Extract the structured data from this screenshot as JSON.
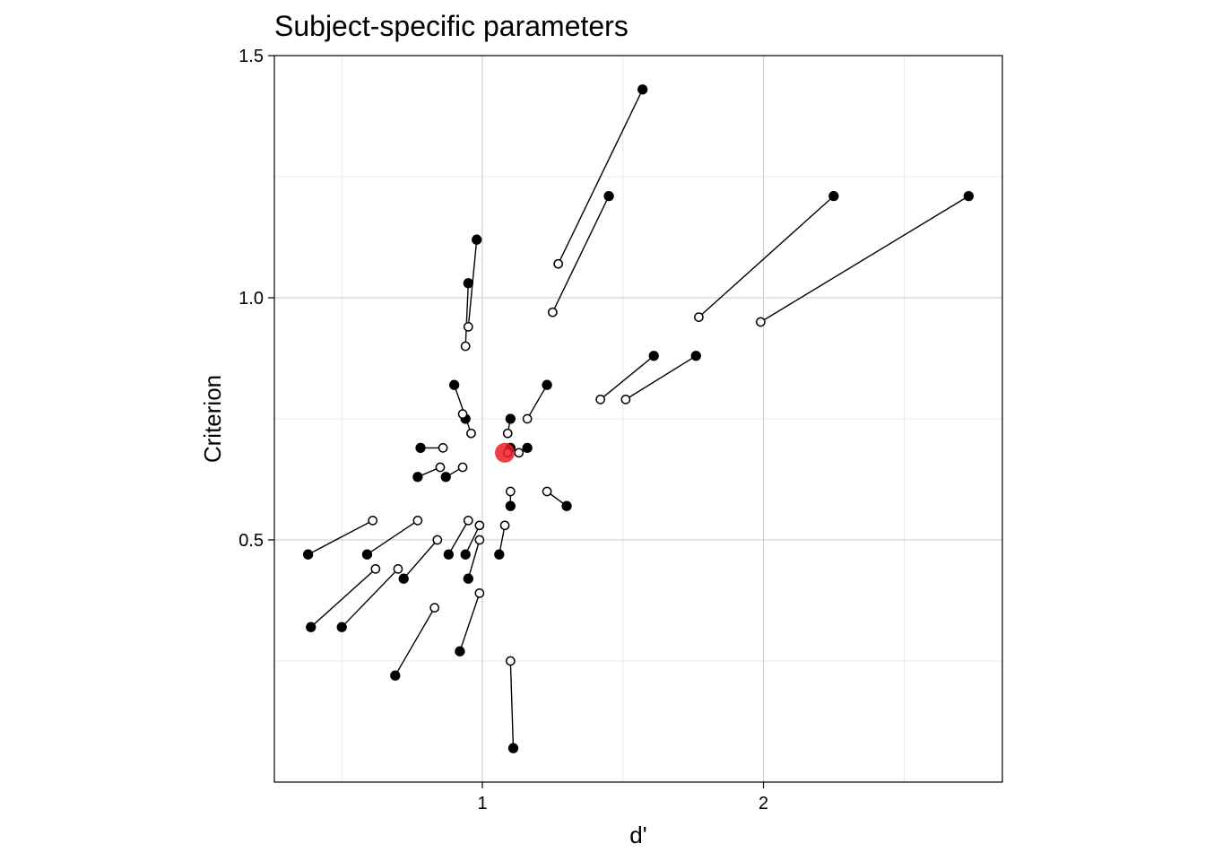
{
  "chart_data": {
    "type": "scatter",
    "title": "Subject-specific parameters",
    "xlabel": "d'",
    "ylabel": "Criterion",
    "xlim": [
      0.26,
      2.85
    ],
    "ylim": [
      0.0,
      1.5
    ],
    "xticks": [
      1,
      2
    ],
    "xtick_labels": [
      "1",
      "2"
    ],
    "yticks": [
      0.5,
      1.0,
      1.5
    ],
    "ytick_labels": [
      "0.5",
      "1.0",
      "1.5"
    ],
    "grid": true,
    "legend": "none",
    "colors": {
      "filled": "#000000",
      "open": "#ffffff",
      "average": "#ee1c25"
    },
    "pairs": [
      {
        "filled": [
          1.57,
          1.43
        ],
        "open": [
          1.27,
          1.07
        ]
      },
      {
        "filled": [
          1.45,
          1.21
        ],
        "open": [
          1.25,
          0.97
        ]
      },
      {
        "filled": [
          2.25,
          1.21
        ],
        "open": [
          1.77,
          0.96
        ]
      },
      {
        "filled": [
          2.73,
          1.21
        ],
        "open": [
          1.99,
          0.95
        ]
      },
      {
        "filled": [
          0.98,
          1.12
        ],
        "open": [
          0.95,
          0.94
        ]
      },
      {
        "filled": [
          0.95,
          1.03
        ],
        "open": [
          0.94,
          0.9
        ]
      },
      {
        "filled": [
          1.61,
          0.88
        ],
        "open": [
          1.42,
          0.79
        ]
      },
      {
        "filled": [
          1.76,
          0.88
        ],
        "open": [
          1.51,
          0.79
        ]
      },
      {
        "filled": [
          0.9,
          0.82
        ],
        "open": [
          0.96,
          0.72
        ]
      },
      {
        "filled": [
          0.94,
          0.75
        ],
        "open": [
          0.93,
          0.76
        ]
      },
      {
        "filled": [
          1.23,
          0.82
        ],
        "open": [
          1.16,
          0.75
        ]
      },
      {
        "filled": [
          1.1,
          0.75
        ],
        "open": [
          1.09,
          0.72
        ]
      },
      {
        "filled": [
          0.78,
          0.69
        ],
        "open": [
          0.86,
          0.69
        ]
      },
      {
        "filled": [
          1.1,
          0.69
        ],
        "open": [
          1.09,
          0.68
        ]
      },
      {
        "filled": [
          1.16,
          0.69
        ],
        "open": [
          1.13,
          0.68
        ]
      },
      {
        "filled": [
          0.77,
          0.63
        ],
        "open": [
          0.85,
          0.65
        ]
      },
      {
        "filled": [
          0.87,
          0.63
        ],
        "open": [
          0.93,
          0.65
        ]
      },
      {
        "filled": [
          1.3,
          0.57
        ],
        "open": [
          1.23,
          0.6
        ]
      },
      {
        "filled": [
          1.1,
          0.57
        ],
        "open": [
          1.1,
          0.6
        ]
      },
      {
        "filled": [
          0.38,
          0.47
        ],
        "open": [
          0.61,
          0.54
        ]
      },
      {
        "filled": [
          0.59,
          0.47
        ],
        "open": [
          0.77,
          0.54
        ]
      },
      {
        "filled": [
          0.88,
          0.47
        ],
        "open": [
          0.95,
          0.54
        ]
      },
      {
        "filled": [
          0.94,
          0.47
        ],
        "open": [
          0.99,
          0.53
        ]
      },
      {
        "filled": [
          1.06,
          0.47
        ],
        "open": [
          1.08,
          0.53
        ]
      },
      {
        "filled": [
          0.72,
          0.42
        ],
        "open": [
          0.84,
          0.5
        ]
      },
      {
        "filled": [
          0.95,
          0.42
        ],
        "open": [
          0.99,
          0.5
        ]
      },
      {
        "filled": [
          0.39,
          0.32
        ],
        "open": [
          0.62,
          0.44
        ]
      },
      {
        "filled": [
          0.5,
          0.32
        ],
        "open": [
          0.7,
          0.44
        ]
      },
      {
        "filled": [
          0.92,
          0.27
        ],
        "open": [
          0.99,
          0.39
        ]
      },
      {
        "filled": [
          0.69,
          0.22
        ],
        "open": [
          0.83,
          0.36
        ]
      },
      {
        "filled": [
          1.11,
          0.07
        ],
        "open": [
          1.1,
          0.25
        ]
      }
    ],
    "average": [
      1.08,
      0.68
    ]
  }
}
